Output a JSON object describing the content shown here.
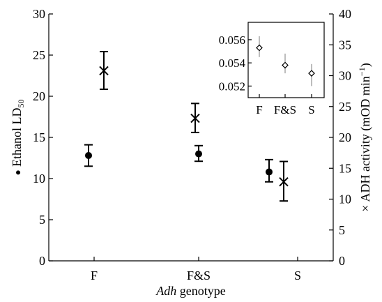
{
  "chart_data": [
    {
      "type": "scatter",
      "categories": [
        "F",
        "F&S",
        "S"
      ],
      "xlabel_italic": "Adh",
      "xlabel_rest": " genotype",
      "y_left": {
        "label_marker": "●",
        "label_text": "Ethanol LD",
        "label_subscript": "50",
        "lim": [
          0,
          30
        ],
        "ticks": [
          "0",
          "5",
          "10",
          "15",
          "20",
          "25",
          "30"
        ]
      },
      "y_right": {
        "label_marker": "×",
        "label_text": "ADH activity (mOD min",
        "label_superscript": "−1",
        "label_close": ")",
        "lim": [
          0,
          40
        ],
        "ticks": [
          "0",
          "5",
          "10",
          "15",
          "20",
          "25",
          "30",
          "35",
          "40"
        ]
      },
      "series": [
        {
          "axis": "left",
          "marker": "circle",
          "values": [
            12.8,
            13.0,
            10.8
          ],
          "err_low": [
            11.5,
            12.1,
            9.6
          ],
          "err_high": [
            14.1,
            14.0,
            12.3
          ]
        },
        {
          "axis": "right",
          "marker": "x",
          "values": [
            30.8,
            23.1,
            12.8
          ],
          "err_low": [
            27.8,
            20.8,
            9.7
          ],
          "err_high": [
            33.9,
            25.5,
            16.1
          ]
        }
      ]
    },
    {
      "type": "scatter",
      "role": "inset",
      "categories": [
        "F",
        "F&S",
        "S"
      ],
      "ylim": [
        0.051,
        0.0575
      ],
      "yticks": [
        "0.052",
        "0.054",
        "0.056"
      ],
      "series": [
        {
          "marker": "diamond",
          "values": [
            0.0553,
            0.0538,
            0.0531
          ],
          "err_low": [
            0.0545,
            0.0531,
            0.052
          ],
          "err_high": [
            0.0563,
            0.0548,
            0.0539
          ]
        }
      ]
    }
  ]
}
